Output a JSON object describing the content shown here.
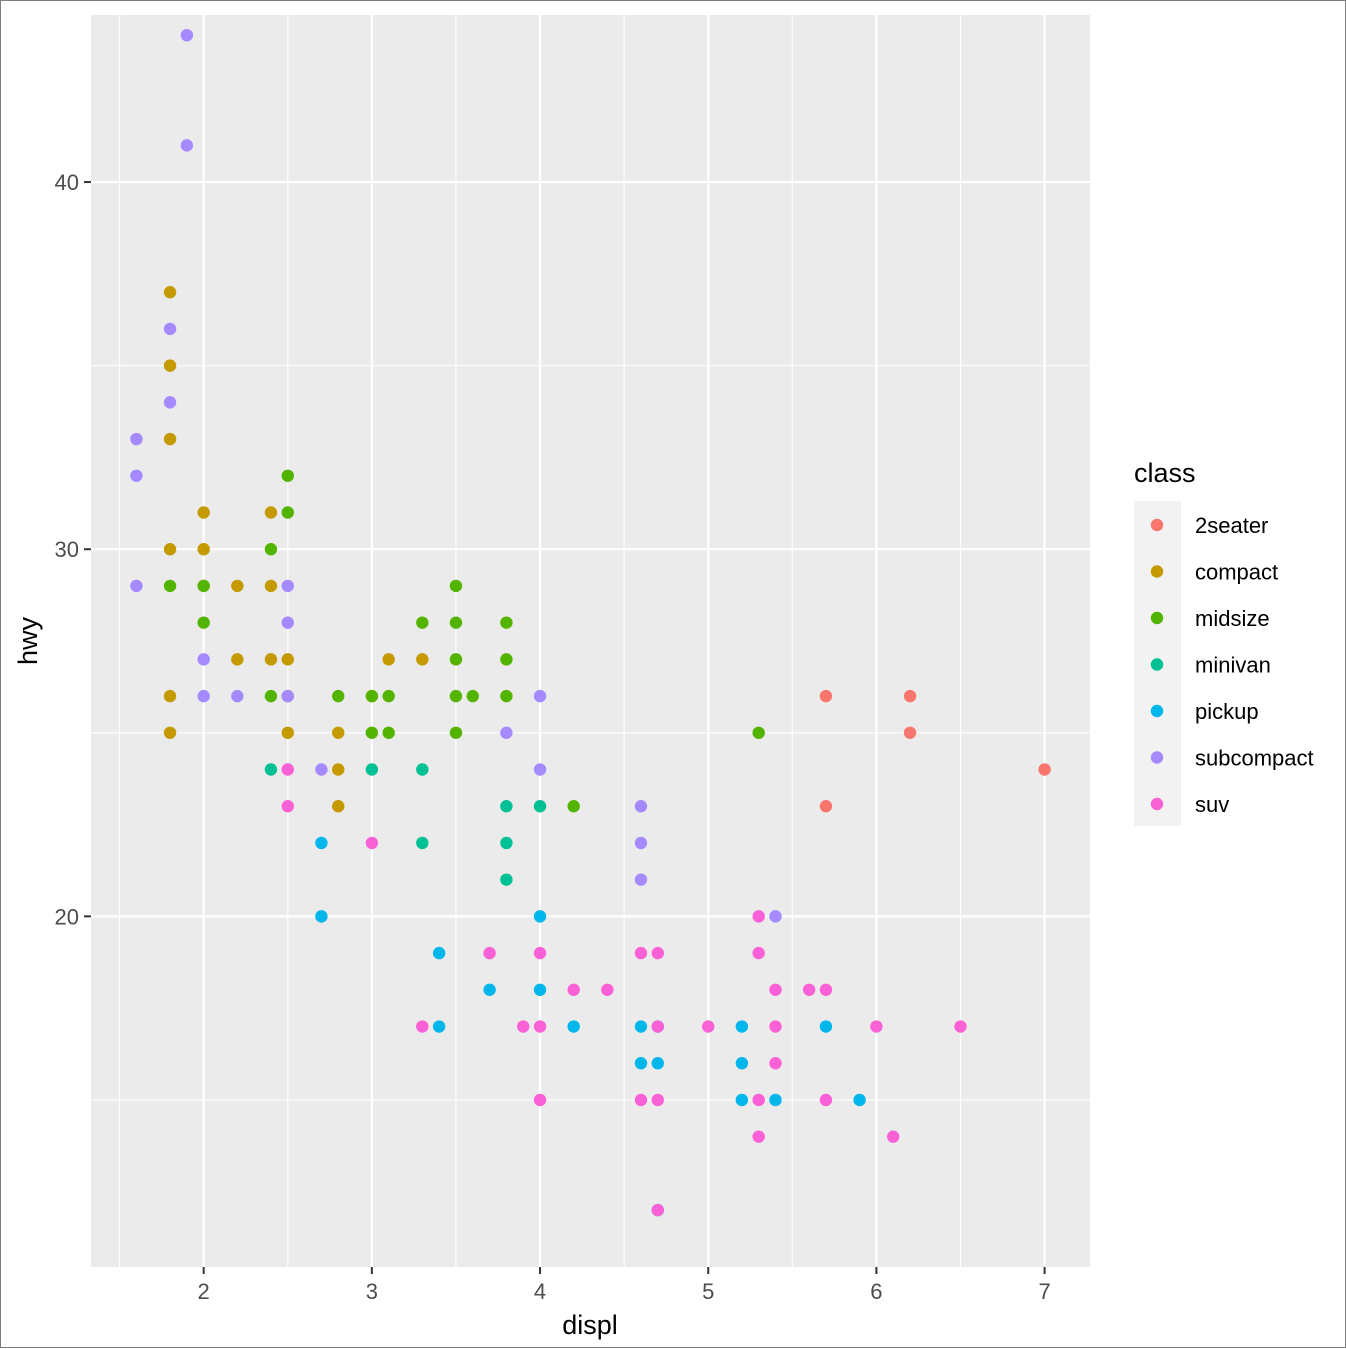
{
  "chart_data": {
    "type": "scatter",
    "xlabel": "displ",
    "ylabel": "hwy",
    "xlim": [
      1.33,
      7.27
    ],
    "ylim": [
      10.45,
      44.55
    ],
    "x_ticks": [
      2,
      3,
      4,
      5,
      6,
      7
    ],
    "x_tick_labels": [
      "2",
      "3",
      "4",
      "5",
      "6",
      "7"
    ],
    "y_ticks": [
      20,
      30,
      40
    ],
    "y_tick_labels": [
      "20",
      "30",
      "40"
    ],
    "grid": true,
    "legend_position": "right",
    "legend_title": "class",
    "series": [
      {
        "name": "2seater",
        "color": "#F8766D",
        "points": [
          [
            5.7,
            26
          ],
          [
            5.7,
            23
          ],
          [
            6.2,
            26
          ],
          [
            6.2,
            25
          ],
          [
            7.0,
            24
          ]
        ]
      },
      {
        "name": "compact",
        "color": "#C49A00",
        "points": [
          [
            1.8,
            37
          ],
          [
            1.8,
            35
          ],
          [
            1.8,
            33
          ],
          [
            1.8,
            30
          ],
          [
            1.8,
            26
          ],
          [
            1.8,
            25
          ],
          [
            2.0,
            31
          ],
          [
            2.0,
            30
          ],
          [
            2.0,
            29
          ],
          [
            2.2,
            29
          ],
          [
            2.2,
            27
          ],
          [
            2.4,
            31
          ],
          [
            2.4,
            29
          ],
          [
            2.4,
            27
          ],
          [
            2.5,
            27
          ],
          [
            2.5,
            25
          ],
          [
            2.8,
            25
          ],
          [
            2.8,
            24
          ],
          [
            2.8,
            23
          ],
          [
            3.0,
            26
          ],
          [
            3.1,
            27
          ],
          [
            3.3,
            27
          ]
        ]
      },
      {
        "name": "midsize",
        "color": "#53B400",
        "points": [
          [
            1.8,
            29
          ],
          [
            2.0,
            29
          ],
          [
            2.0,
            28
          ],
          [
            2.4,
            30
          ],
          [
            2.4,
            26
          ],
          [
            2.5,
            32
          ],
          [
            2.5,
            31
          ],
          [
            2.5,
            26
          ],
          [
            2.8,
            26
          ],
          [
            3.0,
            26
          ],
          [
            3.0,
            25
          ],
          [
            3.1,
            26
          ],
          [
            3.1,
            25
          ],
          [
            3.3,
            28
          ],
          [
            3.5,
            29
          ],
          [
            3.5,
            28
          ],
          [
            3.5,
            27
          ],
          [
            3.5,
            26
          ],
          [
            3.5,
            25
          ],
          [
            3.6,
            26
          ],
          [
            3.8,
            28
          ],
          [
            3.8,
            27
          ],
          [
            3.8,
            26
          ],
          [
            4.2,
            23
          ],
          [
            5.3,
            25
          ]
        ]
      },
      {
        "name": "minivan",
        "color": "#00C094",
        "points": [
          [
            2.4,
            24
          ],
          [
            3.0,
            24
          ],
          [
            3.3,
            24
          ],
          [
            3.3,
            22
          ],
          [
            3.8,
            23
          ],
          [
            3.8,
            22
          ],
          [
            3.8,
            21
          ],
          [
            4.0,
            23
          ]
        ]
      },
      {
        "name": "pickup",
        "color": "#00B6EB",
        "points": [
          [
            2.7,
            22
          ],
          [
            2.7,
            20
          ],
          [
            3.4,
            19
          ],
          [
            3.4,
            17
          ],
          [
            3.7,
            18
          ],
          [
            4.0,
            20
          ],
          [
            4.0,
            18
          ],
          [
            4.2,
            17
          ],
          [
            4.6,
            17
          ],
          [
            4.6,
            16
          ],
          [
            4.7,
            17
          ],
          [
            4.7,
            16
          ],
          [
            4.7,
            12
          ],
          [
            5.2,
            17
          ],
          [
            5.2,
            16
          ],
          [
            5.2,
            15
          ],
          [
            5.4,
            15
          ],
          [
            5.7,
            17
          ],
          [
            5.9,
            15
          ]
        ]
      },
      {
        "name": "subcompact",
        "color": "#A58AFF",
        "points": [
          [
            1.6,
            33
          ],
          [
            1.6,
            32
          ],
          [
            1.6,
            29
          ],
          [
            1.8,
            36
          ],
          [
            1.8,
            34
          ],
          [
            1.9,
            44
          ],
          [
            1.9,
            41
          ],
          [
            2.0,
            27
          ],
          [
            2.0,
            26
          ],
          [
            2.2,
            26
          ],
          [
            2.5,
            29
          ],
          [
            2.5,
            28
          ],
          [
            2.5,
            26
          ],
          [
            2.7,
            24
          ],
          [
            3.8,
            25
          ],
          [
            4.0,
            26
          ],
          [
            4.0,
            24
          ],
          [
            4.6,
            23
          ],
          [
            4.6,
            22
          ],
          [
            4.6,
            21
          ],
          [
            5.4,
            20
          ]
        ]
      },
      {
        "name": "suv",
        "color": "#FB61D7",
        "points": [
          [
            2.5,
            24
          ],
          [
            2.5,
            23
          ],
          [
            3.0,
            22
          ],
          [
            3.3,
            17
          ],
          [
            3.7,
            19
          ],
          [
            3.9,
            17
          ],
          [
            4.0,
            19
          ],
          [
            4.0,
            17
          ],
          [
            4.0,
            15
          ],
          [
            4.2,
            18
          ],
          [
            4.4,
            18
          ],
          [
            4.6,
            19
          ],
          [
            4.6,
            15
          ],
          [
            4.7,
            19
          ],
          [
            4.7,
            17
          ],
          [
            4.7,
            15
          ],
          [
            4.7,
            12
          ],
          [
            5.0,
            17
          ],
          [
            5.3,
            20
          ],
          [
            5.3,
            19
          ],
          [
            5.3,
            15
          ],
          [
            5.3,
            14
          ],
          [
            5.4,
            18
          ],
          [
            5.4,
            17
          ],
          [
            5.4,
            16
          ],
          [
            5.6,
            18
          ],
          [
            5.7,
            18
          ],
          [
            5.7,
            15
          ],
          [
            6.0,
            17
          ],
          [
            6.1,
            14
          ],
          [
            6.5,
            17
          ]
        ]
      }
    ]
  }
}
